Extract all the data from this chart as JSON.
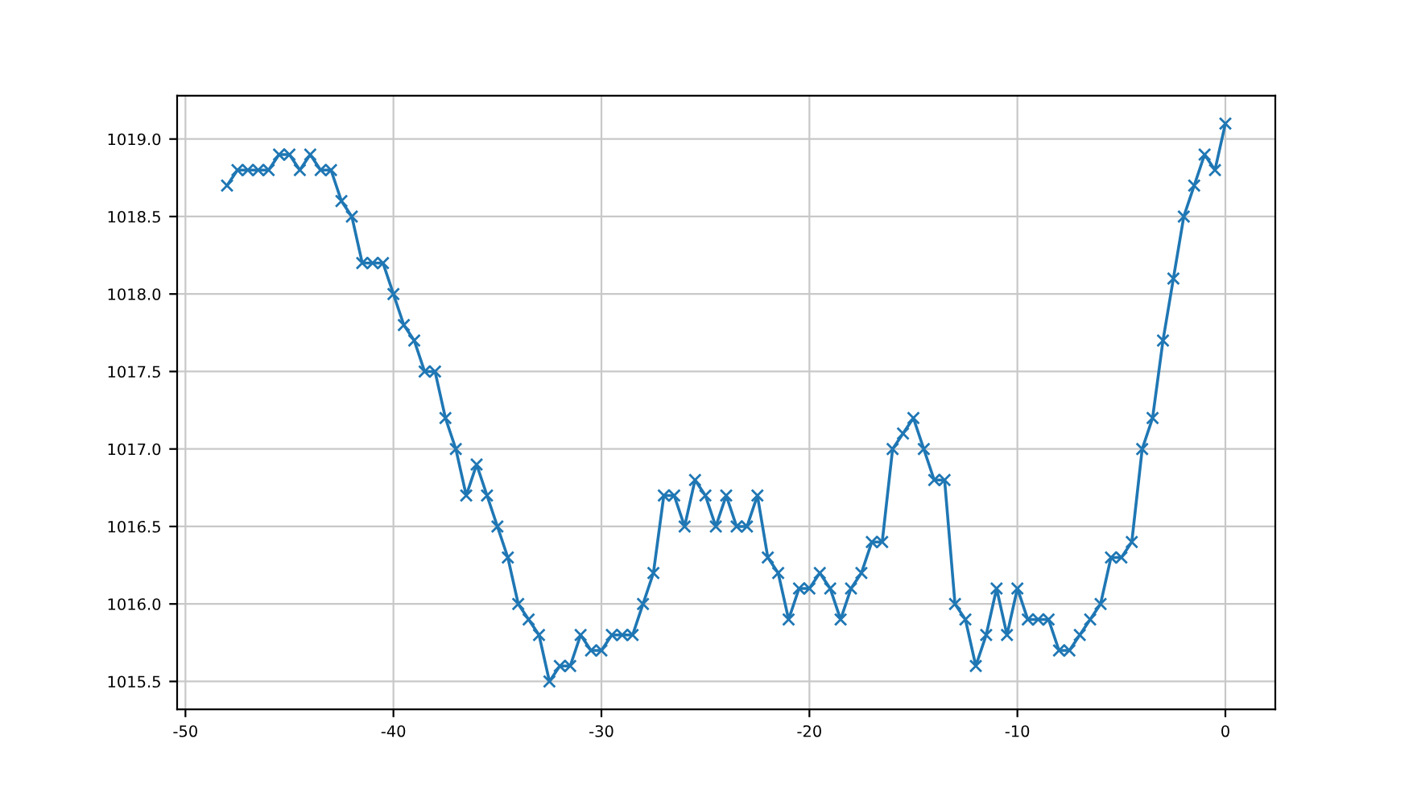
{
  "chart_data": {
    "type": "line",
    "marker": "cross",
    "grid": true,
    "x": [
      -48,
      -47.5,
      -47,
      -46.5,
      -46,
      -45.5,
      -45,
      -44.5,
      -44,
      -43.5,
      -43,
      -42.5,
      -42,
      -41.5,
      -41,
      -40.5,
      -40,
      -39.5,
      -39,
      -38.5,
      -38,
      -37.5,
      -37,
      -36.5,
      -36,
      -35.5,
      -35,
      -34.5,
      -34,
      -33.5,
      -33,
      -32.5,
      -32,
      -31.5,
      -31,
      -30.5,
      -30,
      -29.5,
      -29,
      -28.5,
      -28,
      -27.5,
      -27,
      -26.5,
      -26,
      -25.5,
      -25,
      -24.5,
      -24,
      -23.5,
      -23,
      -22.5,
      -22,
      -21.5,
      -21,
      -20.5,
      -20,
      -19.5,
      -19,
      -18.5,
      -18,
      -17.5,
      -17,
      -16.5,
      -16,
      -15.5,
      -15,
      -14.5,
      -14,
      -13.5,
      -13,
      -12.5,
      -12,
      -11.5,
      -11,
      -10.5,
      -10,
      -9.5,
      -9,
      -8.5,
      -8,
      -7.5,
      -7,
      -6.5,
      -6,
      -5.5,
      -5,
      -4.5,
      -4,
      -3.5,
      -3,
      -2.5,
      -2,
      -1.5,
      -1,
      -0.5,
      0
    ],
    "series": [
      {
        "color": "#1f77b4",
        "values": [
          1018.7,
          1018.8,
          1018.8,
          1018.8,
          1018.8,
          1018.9,
          1018.9,
          1018.8,
          1018.9,
          1018.8,
          1018.8,
          1018.6,
          1018.5,
          1018.2,
          1018.2,
          1018.2,
          1018.0,
          1017.8,
          1017.7,
          1017.5,
          1017.5,
          1017.2,
          1017.0,
          1016.7,
          1016.9,
          1016.7,
          1016.5,
          1016.3,
          1016.0,
          1015.9,
          1015.8,
          1015.5,
          1015.6,
          1015.6,
          1015.8,
          1015.7,
          1015.7,
          1015.8,
          1015.8,
          1015.8,
          1016.0,
          1016.2,
          1016.7,
          1016.7,
          1016.5,
          1016.8,
          1016.7,
          1016.5,
          1016.7,
          1016.5,
          1016.5,
          1016.7,
          1016.3,
          1016.2,
          1015.9,
          1016.1,
          1016.1,
          1016.2,
          1016.1,
          1015.9,
          1016.1,
          1016.2,
          1016.4,
          1016.4,
          1017.0,
          1017.1,
          1017.2,
          1017.0,
          1016.8,
          1016.8,
          1016.0,
          1015.9,
          1015.6,
          1015.8,
          1016.1,
          1015.8,
          1016.1,
          1015.9,
          1015.9,
          1015.9,
          1015.7,
          1015.7,
          1015.8,
          1015.9,
          1016.0,
          1016.3,
          1016.3,
          1016.4,
          1017.0,
          1017.2,
          1017.7,
          1018.1,
          1018.5,
          1018.7,
          1018.9,
          1018.8,
          1019.1
        ]
      }
    ],
    "xlim": [
      -50.4,
      2.4
    ],
    "xticks": [
      -50,
      -40,
      -30,
      -20,
      -10,
      0
    ],
    "ylim": [
      1015.32,
      1019.28
    ],
    "yticks": [
      {
        "value": 1015.5,
        "label": "1015.5"
      },
      {
        "value": 1016.0,
        "label": "1016.0"
      },
      {
        "value": 1016.5,
        "label": "1016.5"
      },
      {
        "value": 1017.0,
        "label": "1017.0"
      },
      {
        "value": 1017.5,
        "label": "1017.5"
      },
      {
        "value": 1018.0,
        "label": "1018.0"
      },
      {
        "value": 1018.5,
        "label": "1018.5"
      },
      {
        "value": 1019.0,
        "label": "1019.0"
      }
    ]
  }
}
